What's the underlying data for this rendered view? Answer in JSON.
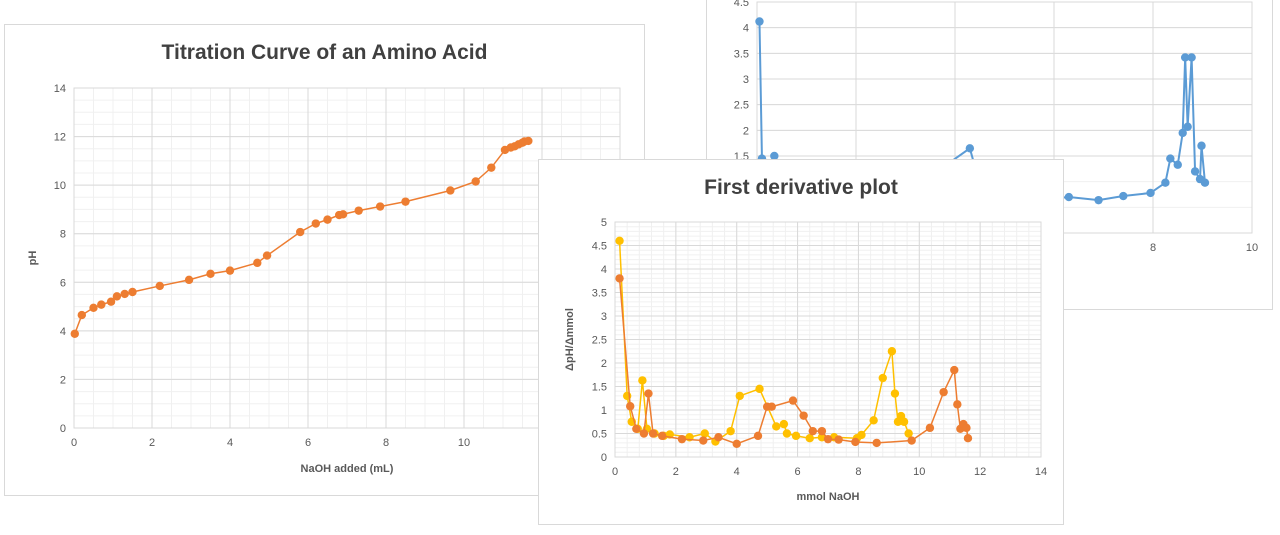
{
  "chart_data": [
    {
      "id": "back-right",
      "type": "line",
      "title": "",
      "xlabel": "",
      "ylabel": "",
      "xlim": [
        0,
        10
      ],
      "ylim": [
        0,
        4.5
      ],
      "x_ticks": [
        "8",
        "10"
      ],
      "y_ticks": [
        "1.5",
        "2",
        "2.5",
        "3",
        "3.5",
        "4",
        "4.5"
      ],
      "grid": true,
      "series": [
        {
          "color": "#5b9bd5",
          "points": [
            [
              0.05,
              4.12
            ],
            [
              0.1,
              1.45
            ],
            [
              0.3,
              0.8
            ],
            [
              0.35,
              1.5
            ],
            [
              0.45,
              0.9
            ],
            [
              2.2,
              0.75
            ],
            [
              3.2,
              0.9
            ],
            [
              4.3,
              1.65
            ],
            [
              4.4,
              1.3
            ],
            [
              4.8,
              0.85
            ],
            [
              6.05,
              0.68
            ],
            [
              6.3,
              0.7
            ],
            [
              6.9,
              0.64
            ],
            [
              7.4,
              0.72
            ],
            [
              7.95,
              0.78
            ],
            [
              8.25,
              0.98
            ],
            [
              8.35,
              1.45
            ],
            [
              8.5,
              1.33
            ],
            [
              8.6,
              1.95
            ],
            [
              8.65,
              3.42
            ],
            [
              8.7,
              2.07
            ],
            [
              8.78,
              3.42
            ],
            [
              8.85,
              1.2
            ],
            [
              8.95,
              1.05
            ],
            [
              8.98,
              1.7
            ],
            [
              9.05,
              0.98
            ]
          ]
        }
      ]
    },
    {
      "id": "titration",
      "type": "line",
      "title": "Titration Curve of an Amino Acid",
      "xlabel": "NaOH added (mL)",
      "ylabel": "pH",
      "xlim": [
        0,
        14
      ],
      "ylim": [
        0,
        14
      ],
      "x_ticks": [
        "0",
        "2",
        "4",
        "6",
        "8",
        "10",
        "1"
      ],
      "y_ticks": [
        "0",
        "2",
        "4",
        "6",
        "8",
        "10",
        "12",
        "14"
      ],
      "grid": true,
      "series": [
        {
          "color": "#ed7d31",
          "points": [
            [
              0.02,
              3.88
            ],
            [
              0.2,
              4.65
            ],
            [
              0.5,
              4.95
            ],
            [
              0.7,
              5.08
            ],
            [
              0.95,
              5.2
            ],
            [
              1.1,
              5.42
            ],
            [
              1.3,
              5.52
            ],
            [
              1.5,
              5.6
            ],
            [
              2.2,
              5.85
            ],
            [
              2.95,
              6.1
            ],
            [
              3.5,
              6.35
            ],
            [
              4.0,
              6.48
            ],
            [
              4.7,
              6.8
            ],
            [
              4.95,
              7.1
            ],
            [
              5.8,
              8.07
            ],
            [
              6.2,
              8.42
            ],
            [
              6.5,
              8.58
            ],
            [
              6.8,
              8.77
            ],
            [
              6.9,
              8.8
            ],
            [
              7.3,
              8.95
            ],
            [
              7.85,
              9.12
            ],
            [
              8.5,
              9.32
            ],
            [
              9.65,
              9.78
            ],
            [
              10.3,
              10.15
            ],
            [
              10.7,
              10.72
            ],
            [
              11.05,
              11.45
            ],
            [
              11.2,
              11.55
            ],
            [
              11.3,
              11.6
            ],
            [
              11.4,
              11.68
            ],
            [
              11.5,
              11.75
            ],
            [
              11.55,
              11.8
            ],
            [
              11.65,
              11.82
            ]
          ]
        }
      ]
    },
    {
      "id": "first-derivative",
      "type": "line",
      "title": "First derivative plot",
      "xlabel": "mmol NaOH",
      "ylabel": "ΔpH/Δmmol",
      "xlim": [
        0,
        14
      ],
      "ylim": [
        0,
        5
      ],
      "x_ticks": [
        "0",
        "2",
        "4",
        "6",
        "8",
        "10",
        "12",
        "14"
      ],
      "y_ticks": [
        "0",
        "0.5",
        "1",
        "1.5",
        "2",
        "2.5",
        "3",
        "3.5",
        "4",
        "4.5",
        "5"
      ],
      "grid": true,
      "series": [
        {
          "color": "#ffc000",
          "points": [
            [
              0.15,
              4.6
            ],
            [
              0.4,
              1.3
            ],
            [
              0.55,
              0.75
            ],
            [
              0.75,
              0.6
            ],
            [
              0.9,
              1.63
            ],
            [
              1.05,
              0.6
            ],
            [
              1.3,
              0.5
            ],
            [
              1.6,
              0.45
            ],
            [
              1.8,
              0.48
            ],
            [
              2.45,
              0.42
            ],
            [
              2.95,
              0.5
            ],
            [
              3.3,
              0.33
            ],
            [
              3.8,
              0.55
            ],
            [
              4.1,
              1.3
            ],
            [
              4.75,
              1.45
            ],
            [
              5.3,
              0.65
            ],
            [
              5.55,
              0.7
            ],
            [
              5.65,
              0.5
            ],
            [
              5.95,
              0.45
            ],
            [
              6.4,
              0.4
            ],
            [
              6.8,
              0.42
            ],
            [
              7.2,
              0.42
            ],
            [
              7.95,
              0.4
            ],
            [
              8.1,
              0.47
            ],
            [
              8.5,
              0.78
            ],
            [
              8.8,
              1.68
            ],
            [
              9.1,
              2.25
            ],
            [
              9.2,
              1.35
            ],
            [
              9.3,
              0.75
            ],
            [
              9.4,
              0.87
            ],
            [
              9.5,
              0.75
            ],
            [
              9.65,
              0.5
            ]
          ]
        },
        {
          "color": "#ed7d31",
          "points": [
            [
              0.15,
              3.8
            ],
            [
              0.5,
              1.08
            ],
            [
              0.7,
              0.6
            ],
            [
              0.95,
              0.5
            ],
            [
              1.1,
              1.35
            ],
            [
              1.25,
              0.5
            ],
            [
              1.55,
              0.45
            ],
            [
              2.2,
              0.38
            ],
            [
              2.9,
              0.35
            ],
            [
              3.4,
              0.42
            ],
            [
              4.0,
              0.28
            ],
            [
              4.7,
              0.45
            ],
            [
              5.0,
              1.07
            ],
            [
              5.15,
              1.07
            ],
            [
              5.85,
              1.2
            ],
            [
              6.2,
              0.88
            ],
            [
              6.5,
              0.55
            ],
            [
              6.8,
              0.55
            ],
            [
              7.0,
              0.38
            ],
            [
              7.35,
              0.37
            ],
            [
              7.9,
              0.32
            ],
            [
              8.6,
              0.3
            ],
            [
              9.75,
              0.35
            ],
            [
              10.35,
              0.62
            ],
            [
              10.8,
              1.38
            ],
            [
              11.15,
              1.85
            ],
            [
              11.25,
              1.12
            ],
            [
              11.35,
              0.6
            ],
            [
              11.45,
              0.7
            ],
            [
              11.55,
              0.62
            ],
            [
              11.6,
              0.4
            ]
          ]
        }
      ]
    }
  ]
}
